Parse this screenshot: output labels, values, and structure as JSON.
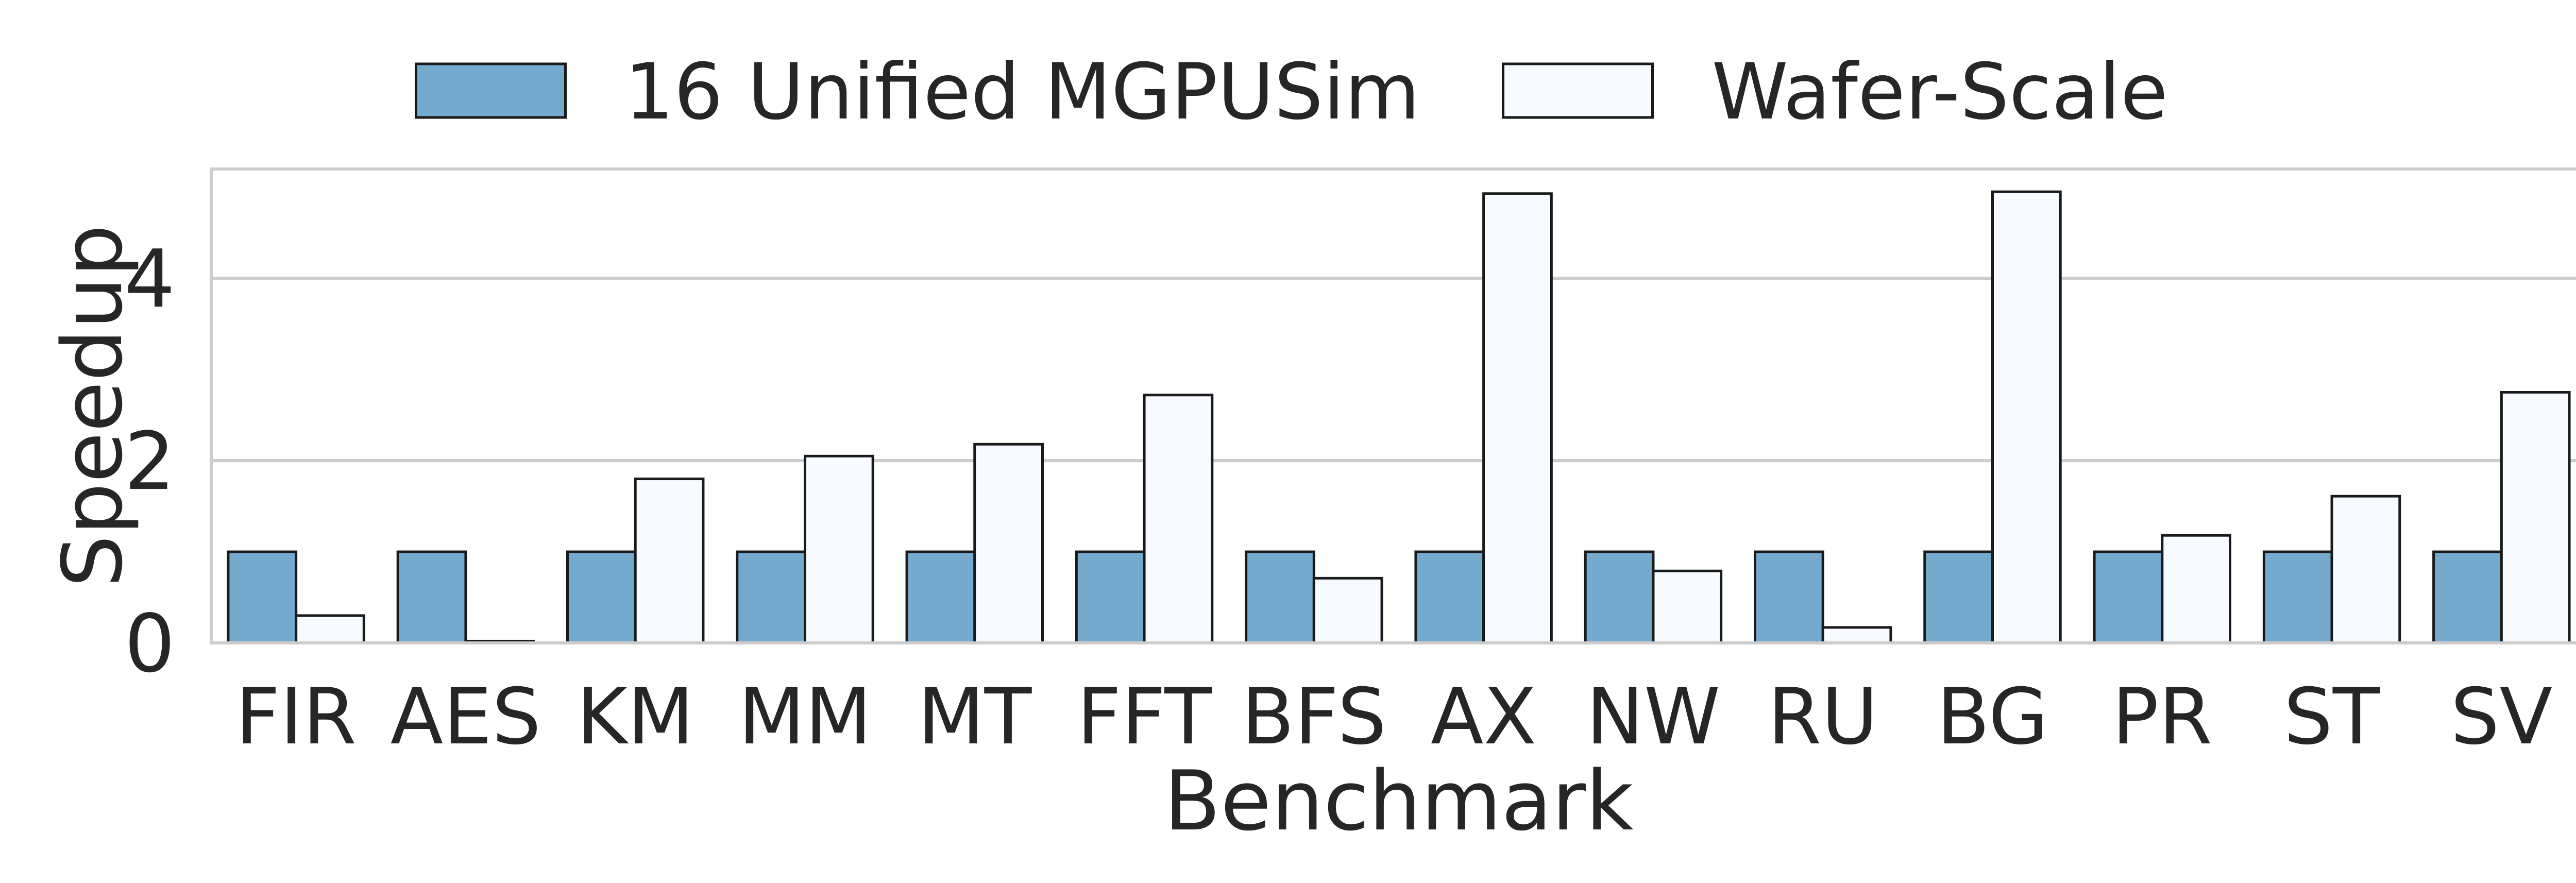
{
  "chart_data": {
    "type": "bar",
    "title": "",
    "xlabel": "Benchmark",
    "ylabel": "Speedup",
    "categories": [
      "FIR",
      "AES",
      "KM",
      "MM",
      "MT",
      "FFT",
      "BFS",
      "AX",
      "NW",
      "RU",
      "BG",
      "PR",
      "ST",
      "SV"
    ],
    "series": [
      {
        "name": "16 Unified MGPUSim",
        "values": [
          1,
          1,
          1,
          1,
          1,
          1,
          1,
          1,
          1,
          1,
          1,
          1,
          1,
          1
        ],
        "color": "#75aacf"
      },
      {
        "name": "Wafer-Scale",
        "values": [
          0.3,
          0.02,
          1.8,
          2.05,
          2.18,
          2.72,
          0.71,
          4.93,
          0.79,
          0.17,
          4.95,
          1.18,
          1.61,
          2.75
        ],
        "color": "#f7fbff"
      }
    ],
    "ylim": [
      0,
      5.2
    ],
    "yticks": [
      0,
      2,
      4
    ],
    "grid": true,
    "legend_position": "top-center"
  }
}
